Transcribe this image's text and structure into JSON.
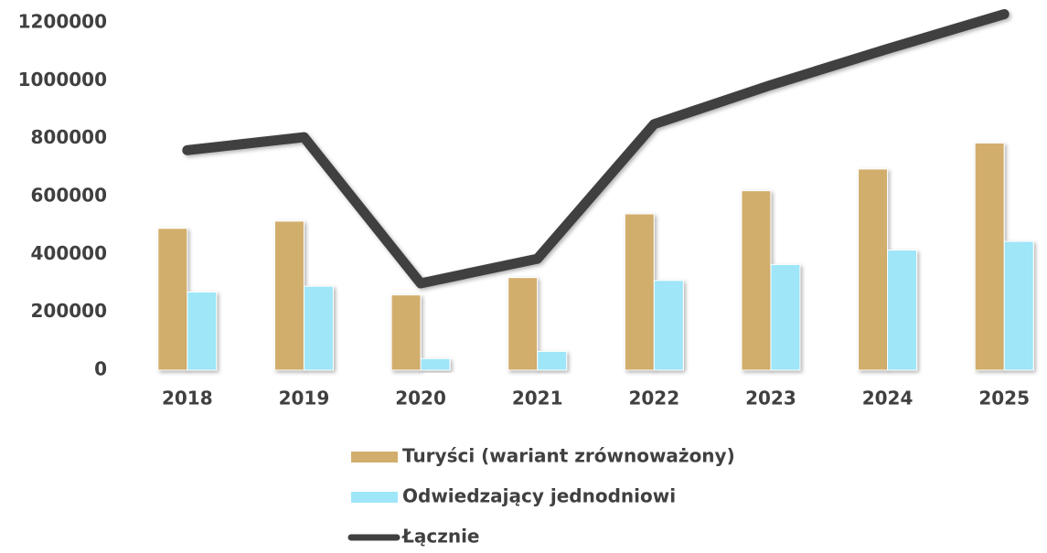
{
  "chart_data": {
    "type": "bar",
    "categories": [
      "2018",
      "2019",
      "2020",
      "2021",
      "2022",
      "2023",
      "2024",
      "2025"
    ],
    "series": [
      {
        "name": "Turyści (wariant zrównoważony)",
        "color": "#d2ae6d",
        "values": [
          490000,
          515000,
          260000,
          320000,
          540000,
          620000,
          695000,
          785000
        ]
      },
      {
        "name": "Odwiedzający jednodniowi",
        "color": "#9ee6f8",
        "values": [
          270000,
          290000,
          40000,
          65000,
          310000,
          365000,
          415000,
          445000
        ]
      },
      {
        "name": "Łącznie",
        "type": "line",
        "color": "#404040",
        "values": [
          760000,
          805000,
          300000,
          385000,
          850000,
          985000,
          1110000,
          1230000
        ]
      }
    ],
    "ylim": [
      0,
      1200000
    ],
    "yticks": [
      0,
      200000,
      400000,
      600000,
      800000,
      1000000,
      1200000
    ],
    "legend": "bottom"
  }
}
